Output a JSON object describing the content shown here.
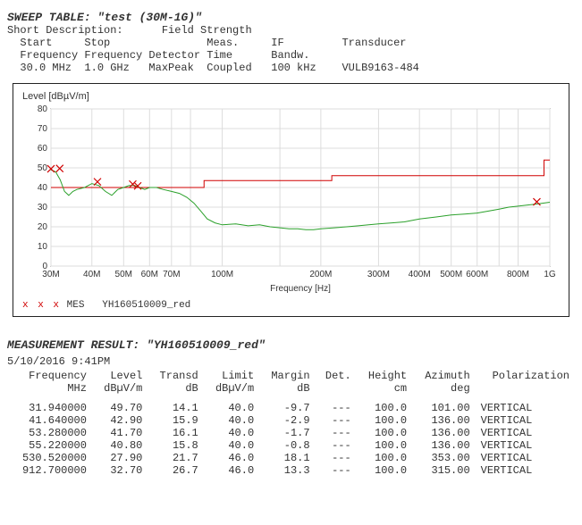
{
  "sweep_table": {
    "title_prefix": "SWEEP TABLE:",
    "title_name": "\"test (30M-1G)\"",
    "short_desc_label": "Short Description:",
    "short_desc_value": "Field Strength",
    "params": {
      "headers_line1": "  Start     Stop               Meas.     IF         Transducer",
      "headers_line2": "  Frequency Frequency Detector Time      Bandw.",
      "values_line": "  30.0 MHz  1.0 GHz   MaxPeak  Coupled   100 kHz    VULB9163-484"
    }
  },
  "chart": {
    "ylabel": "Level [dBµV/m]",
    "xlabel": "Frequency [Hz]",
    "ylim": [
      0,
      80
    ],
    "ytick_step": 10,
    "x_ticks": [
      "30M",
      "40M",
      "50M",
      "60M",
      "70M",
      "",
      "100M",
      "",
      "200M",
      "300M",
      "400M",
      "500M",
      "600M",
      "",
      "800M",
      "1G"
    ],
    "x_positions": [
      30,
      40,
      50,
      60,
      70,
      80,
      100,
      150,
      200,
      300,
      400,
      500,
      600,
      700,
      800,
      1000
    ],
    "grid_color": "#dcdcdc",
    "axis_color": "#333333",
    "background": "#ffffff",
    "limit_line": {
      "color": "#d00000",
      "width": 1,
      "segments": [
        {
          "x1": 30,
          "x2": 88,
          "y": 40
        },
        {
          "x1": 88,
          "x2": 216,
          "y": 43.5
        },
        {
          "x1": 216,
          "x2": 960,
          "y": 46
        },
        {
          "x1": 960,
          "x2": 1000,
          "y": 54
        }
      ]
    },
    "green_line": {
      "color": "#2aa02a",
      "width": 1,
      "points": [
        [
          30,
          49
        ],
        [
          31,
          48
        ],
        [
          32,
          44
        ],
        [
          33,
          38
        ],
        [
          34,
          36
        ],
        [
          35,
          38
        ],
        [
          36,
          39
        ],
        [
          38,
          40
        ],
        [
          40,
          42
        ],
        [
          42,
          41
        ],
        [
          44,
          38
        ],
        [
          46,
          36
        ],
        [
          48,
          39
        ],
        [
          50,
          40
        ],
        [
          52,
          41
        ],
        [
          54,
          41
        ],
        [
          56,
          40
        ],
        [
          58,
          39
        ],
        [
          60,
          40
        ],
        [
          63,
          40
        ],
        [
          66,
          39
        ],
        [
          70,
          38
        ],
        [
          74,
          37
        ],
        [
          78,
          35
        ],
        [
          82,
          32
        ],
        [
          86,
          28
        ],
        [
          90,
          24
        ],
        [
          95,
          22
        ],
        [
          100,
          21
        ],
        [
          110,
          21.5
        ],
        [
          120,
          20.5
        ],
        [
          130,
          21
        ],
        [
          140,
          20
        ],
        [
          150,
          19.5
        ],
        [
          160,
          19
        ],
        [
          170,
          19
        ],
        [
          180,
          18.5
        ],
        [
          190,
          18.5
        ],
        [
          200,
          19
        ],
        [
          220,
          19.5
        ],
        [
          240,
          20
        ],
        [
          260,
          20.5
        ],
        [
          280,
          21
        ],
        [
          300,
          21.5
        ],
        [
          330,
          22
        ],
        [
          360,
          22.5
        ],
        [
          400,
          24
        ],
        [
          450,
          25
        ],
        [
          500,
          26
        ],
        [
          550,
          26.5
        ],
        [
          600,
          27
        ],
        [
          650,
          28
        ],
        [
          700,
          29
        ],
        [
          750,
          30
        ],
        [
          800,
          30.5
        ],
        [
          850,
          31
        ],
        [
          900,
          31.5
        ],
        [
          950,
          32
        ],
        [
          1000,
          32.5
        ]
      ]
    },
    "mes_markers": {
      "color": "#d00000",
      "size": 4,
      "points": [
        [
          30,
          49.5
        ],
        [
          31.9,
          49.7
        ],
        [
          41.6,
          42.9
        ],
        [
          53.3,
          41.7
        ],
        [
          55.2,
          40.8
        ],
        [
          912.7,
          32.7
        ]
      ]
    },
    "legend": {
      "mes_symbol": "x x x",
      "mes_label": "MES",
      "series_label": "YH160510009_red"
    }
  },
  "measurement_result": {
    "title_prefix": "MEASUREMENT RESULT:",
    "title_name": "\"YH160510009_red\"",
    "datetime": "5/10/2016  9:41PM",
    "columns": [
      {
        "h1": "Frequency",
        "h2": "MHz"
      },
      {
        "h1": "Level",
        "h2": "dBµV/m"
      },
      {
        "h1": "Transd",
        "h2": "dB"
      },
      {
        "h1": "Limit",
        "h2": "dBµV/m"
      },
      {
        "h1": "Margin",
        "h2": "dB"
      },
      {
        "h1": "Det.",
        "h2": ""
      },
      {
        "h1": "Height",
        "h2": "cm"
      },
      {
        "h1": "Azimuth",
        "h2": "deg"
      },
      {
        "h1": "Polarization",
        "h2": ""
      }
    ],
    "rows": [
      [
        "31.940000",
        "49.70",
        "14.1",
        "40.0",
        "-9.7",
        "---",
        "100.0",
        "101.00",
        "VERTICAL"
      ],
      [
        "41.640000",
        "42.90",
        "15.9",
        "40.0",
        "-2.9",
        "---",
        "100.0",
        "136.00",
        "VERTICAL"
      ],
      [
        "53.280000",
        "41.70",
        "16.1",
        "40.0",
        "-1.7",
        "---",
        "100.0",
        "136.00",
        "VERTICAL"
      ],
      [
        "55.220000",
        "40.80",
        "15.8",
        "40.0",
        "-0.8",
        "---",
        "100.0",
        "136.00",
        "VERTICAL"
      ],
      [
        "530.520000",
        "27.90",
        "21.7",
        "46.0",
        "18.1",
        "---",
        "100.0",
        "353.00",
        "VERTICAL"
      ],
      [
        "912.700000",
        "32.70",
        "26.7",
        "46.0",
        "13.3",
        "---",
        "100.0",
        "315.00",
        "VERTICAL"
      ]
    ]
  }
}
